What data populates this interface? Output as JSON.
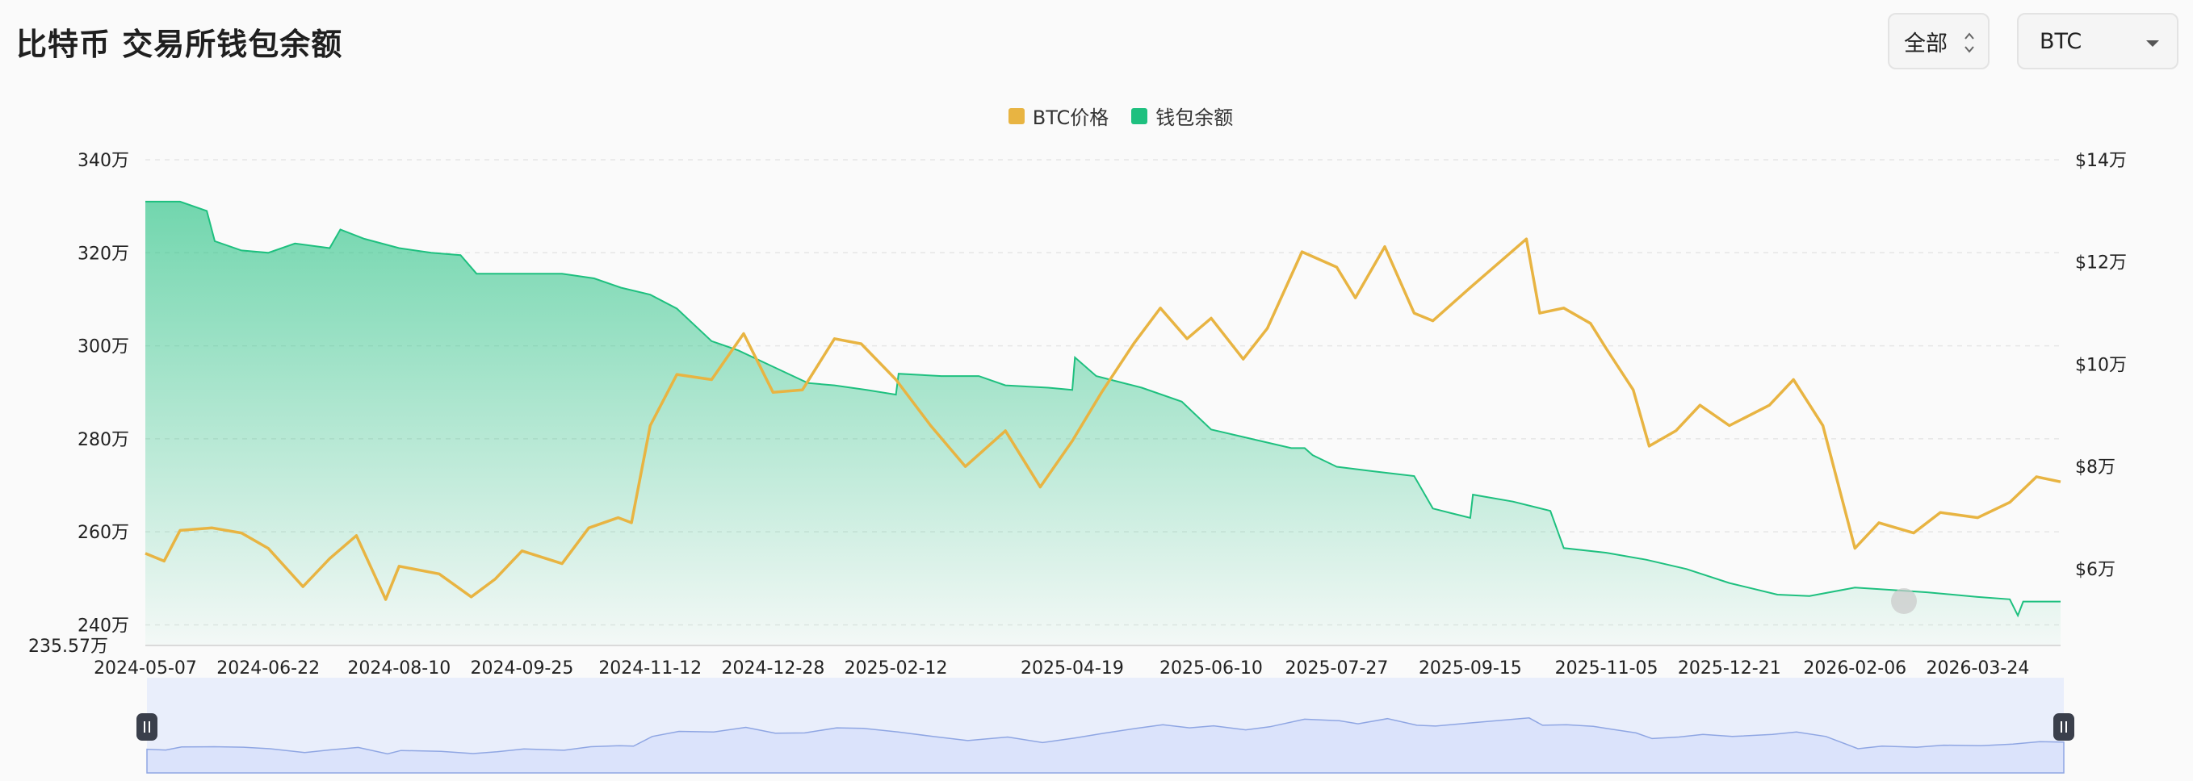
{
  "header": {
    "title": "比特币 交易所钱包余额",
    "range_value": "全部",
    "coin_value": "BTC"
  },
  "colors": {
    "price": "#e8b442",
    "balance": "#1ec07f",
    "navigator_fill": "#dbe3fb",
    "navigator_line": "#8fa6e3"
  },
  "icons": {
    "range_chevron": "chevron-up-down-icon",
    "coin_caret": "caret-down-icon",
    "navigator_handles": "grip-handle-icon"
  },
  "chart_data": {
    "type": "line",
    "title": "比特币 交易所钱包余额",
    "legend": [
      "BTC价格",
      "钱包余额"
    ],
    "legend_position": "top-center",
    "grid": true,
    "x_ticks": [
      "2024-05-07",
      "2024-06-22",
      "2024-08-10",
      "2024-09-25",
      "2024-11-12",
      "2024-12-28",
      "2025-02-12",
      "2025-04-19",
      "2025-06-10",
      "2025-07-27",
      "2025-09-15",
      "2025-11-05",
      "2025-12-21",
      "2026-02-06",
      "2026-03-24"
    ],
    "y_left_ticks": [
      "340万",
      "320万",
      "300万",
      "280万",
      "260万",
      "240万"
    ],
    "y_left_min_label": "235.57万",
    "y_right_ticks": [
      "$14万",
      "$12万",
      "$10万",
      "$8万",
      "$6万"
    ],
    "y_left_range": [
      2355700,
      3400000
    ],
    "y_right_range": [
      45000,
      140000
    ],
    "x_range": [
      "2024-05-07",
      "2026-04-24"
    ],
    "series": [
      {
        "name": "钱包余额",
        "axis": "left",
        "type": "area",
        "points": [
          [
            "2024-05-07",
            3310000
          ],
          [
            "2024-05-20",
            3310000
          ],
          [
            "2024-05-30",
            3290000
          ],
          [
            "2024-06-02",
            3225000
          ],
          [
            "2024-06-12",
            3205000
          ],
          [
            "2024-06-22",
            3200000
          ],
          [
            "2024-07-02",
            3220000
          ],
          [
            "2024-07-15",
            3210000
          ],
          [
            "2024-07-19",
            3250000
          ],
          [
            "2024-07-28",
            3230000
          ],
          [
            "2024-08-10",
            3210000
          ],
          [
            "2024-08-22",
            3200000
          ],
          [
            "2024-09-02",
            3195000
          ],
          [
            "2024-09-08",
            3155000
          ],
          [
            "2024-09-25",
            3155000
          ],
          [
            "2024-10-10",
            3155000
          ],
          [
            "2024-10-22",
            3145000
          ],
          [
            "2024-11-01",
            3125000
          ],
          [
            "2024-11-12",
            3110000
          ],
          [
            "2024-11-22",
            3080000
          ],
          [
            "2024-12-05",
            3010000
          ],
          [
            "2024-12-15",
            2990000
          ],
          [
            "2024-12-28",
            2955000
          ],
          [
            "2025-01-10",
            2920000
          ],
          [
            "2025-01-20",
            2915000
          ],
          [
            "2025-02-01",
            2905000
          ],
          [
            "2025-02-12",
            2895000
          ],
          [
            "2025-02-13",
            2940000
          ],
          [
            "2025-03-01",
            2935000
          ],
          [
            "2025-03-15",
            2935000
          ],
          [
            "2025-03-25",
            2915000
          ],
          [
            "2025-04-10",
            2910000
          ],
          [
            "2025-04-19",
            2905000
          ],
          [
            "2025-04-20",
            2975000
          ],
          [
            "2025-04-28",
            2935000
          ],
          [
            "2025-05-15",
            2910000
          ],
          [
            "2025-05-30",
            2880000
          ],
          [
            "2025-06-10",
            2820000
          ],
          [
            "2025-06-25",
            2800000
          ],
          [
            "2025-07-10",
            2780000
          ],
          [
            "2025-07-15",
            2780000
          ],
          [
            "2025-07-18",
            2765000
          ],
          [
            "2025-07-27",
            2740000
          ],
          [
            "2025-08-10",
            2730000
          ],
          [
            "2025-08-25",
            2720000
          ],
          [
            "2025-09-01",
            2650000
          ],
          [
            "2025-09-08",
            2640000
          ],
          [
            "2025-09-15",
            2630000
          ],
          [
            "2025-09-16",
            2680000
          ],
          [
            "2025-10-01",
            2665000
          ],
          [
            "2025-10-15",
            2645000
          ],
          [
            "2025-10-20",
            2565000
          ],
          [
            "2025-11-05",
            2555000
          ],
          [
            "2025-11-20",
            2540000
          ],
          [
            "2025-12-05",
            2520000
          ],
          [
            "2025-12-21",
            2490000
          ],
          [
            "2026-01-08",
            2465000
          ],
          [
            "2026-01-20",
            2462000
          ],
          [
            "2026-02-06",
            2480000
          ],
          [
            "2026-02-20",
            2475000
          ],
          [
            "2026-03-05",
            2470000
          ],
          [
            "2026-03-24",
            2460000
          ],
          [
            "2026-04-05",
            2455000
          ],
          [
            "2026-04-08",
            2420000
          ],
          [
            "2026-04-10",
            2450000
          ],
          [
            "2026-04-24",
            2450000
          ]
        ]
      },
      {
        "name": "BTC价格",
        "axis": "right",
        "type": "line",
        "points": [
          [
            "2024-05-07",
            63000
          ],
          [
            "2024-05-14",
            61500
          ],
          [
            "2024-05-20",
            67500
          ],
          [
            "2024-06-01",
            68000
          ],
          [
            "2024-06-12",
            67000
          ],
          [
            "2024-06-22",
            64000
          ],
          [
            "2024-07-05",
            56500
          ],
          [
            "2024-07-15",
            62000
          ],
          [
            "2024-07-25",
            66500
          ],
          [
            "2024-08-05",
            54000
          ],
          [
            "2024-08-10",
            60500
          ],
          [
            "2024-08-25",
            59000
          ],
          [
            "2024-09-06",
            54500
          ],
          [
            "2024-09-15",
            58000
          ],
          [
            "2024-09-25",
            63500
          ],
          [
            "2024-10-10",
            61000
          ],
          [
            "2024-10-20",
            68000
          ],
          [
            "2024-10-31",
            70000
          ],
          [
            "2024-11-05",
            69000
          ],
          [
            "2024-11-12",
            88000
          ],
          [
            "2024-11-22",
            98000
          ],
          [
            "2024-12-05",
            97000
          ],
          [
            "2024-12-17",
            106000
          ],
          [
            "2024-12-28",
            94500
          ],
          [
            "2025-01-08",
            95000
          ],
          [
            "2025-01-20",
            105000
          ],
          [
            "2025-01-30",
            104000
          ],
          [
            "2025-02-12",
            97000
          ],
          [
            "2025-02-25",
            88000
          ],
          [
            "2025-03-10",
            80000
          ],
          [
            "2025-03-25",
            87000
          ],
          [
            "2025-04-07",
            76000
          ],
          [
            "2025-04-19",
            85000
          ],
          [
            "2025-04-30",
            94500
          ],
          [
            "2025-05-12",
            104000
          ],
          [
            "2025-05-22",
            111000
          ],
          [
            "2025-06-01",
            105000
          ],
          [
            "2025-06-10",
            109000
          ],
          [
            "2025-06-22",
            101000
          ],
          [
            "2025-07-01",
            107000
          ],
          [
            "2025-07-14",
            122000
          ],
          [
            "2025-07-27",
            119000
          ],
          [
            "2025-08-03",
            113000
          ],
          [
            "2025-08-14",
            123000
          ],
          [
            "2025-08-25",
            110000
          ],
          [
            "2025-09-01",
            108500
          ],
          [
            "2025-09-15",
            115000
          ],
          [
            "2025-10-06",
            124500
          ],
          [
            "2025-10-11",
            110000
          ],
          [
            "2025-10-20",
            111000
          ],
          [
            "2025-10-30",
            108000
          ],
          [
            "2025-11-05",
            103000
          ],
          [
            "2025-11-15",
            95000
          ],
          [
            "2025-11-21",
            84000
          ],
          [
            "2025-12-01",
            87000
          ],
          [
            "2025-12-10",
            92000
          ],
          [
            "2025-12-21",
            88000
          ],
          [
            "2026-01-05",
            92000
          ],
          [
            "2026-01-14",
            97000
          ],
          [
            "2026-01-25",
            88000
          ],
          [
            "2026-02-06",
            64000
          ],
          [
            "2026-02-15",
            69000
          ],
          [
            "2026-02-28",
            67000
          ],
          [
            "2026-03-10",
            71000
          ],
          [
            "2026-03-24",
            70000
          ],
          [
            "2026-04-05",
            73000
          ],
          [
            "2026-04-15",
            78000
          ],
          [
            "2026-04-24",
            77000
          ]
        ]
      }
    ]
  }
}
